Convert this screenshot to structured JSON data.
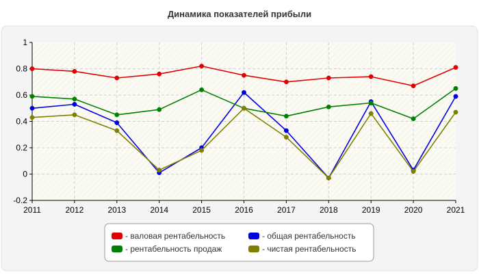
{
  "chart_data": {
    "type": "line",
    "title": "Динамика показателей прибыли",
    "xlabel": "",
    "ylabel": "",
    "categories": [
      "2011",
      "2012",
      "2013",
      "2014",
      "2015",
      "2016",
      "2017",
      "2018",
      "2019",
      "2020",
      "2021"
    ],
    "ylim": [
      -0.2,
      1
    ],
    "yticks": [
      "-0.2",
      "0",
      "0.2",
      "0.4",
      "0.6",
      "0.8",
      "1"
    ],
    "grid": true,
    "legend_position": "bottom",
    "series": [
      {
        "name": "- валовая рентабельность",
        "color": "#e00000",
        "values": [
          0.8,
          0.78,
          0.73,
          0.76,
          0.82,
          0.75,
          0.7,
          0.73,
          0.74,
          0.67,
          0.81
        ]
      },
      {
        "name": "- общая рентабельность",
        "color": "#0000e0",
        "values": [
          0.5,
          0.53,
          0.39,
          0.01,
          0.2,
          0.62,
          0.33,
          -0.03,
          0.55,
          0.03,
          0.59
        ]
      },
      {
        "name": "- рентабельность продаж",
        "color": "#008000",
        "values": [
          0.59,
          0.57,
          0.45,
          0.49,
          0.64,
          0.5,
          0.44,
          0.51,
          0.54,
          0.42,
          0.65
        ]
      },
      {
        "name": "- чистая рентабельность",
        "color": "#808000",
        "values": [
          0.43,
          0.45,
          0.33,
          0.03,
          0.18,
          0.5,
          0.28,
          -0.03,
          0.46,
          0.02,
          0.47
        ]
      }
    ]
  }
}
